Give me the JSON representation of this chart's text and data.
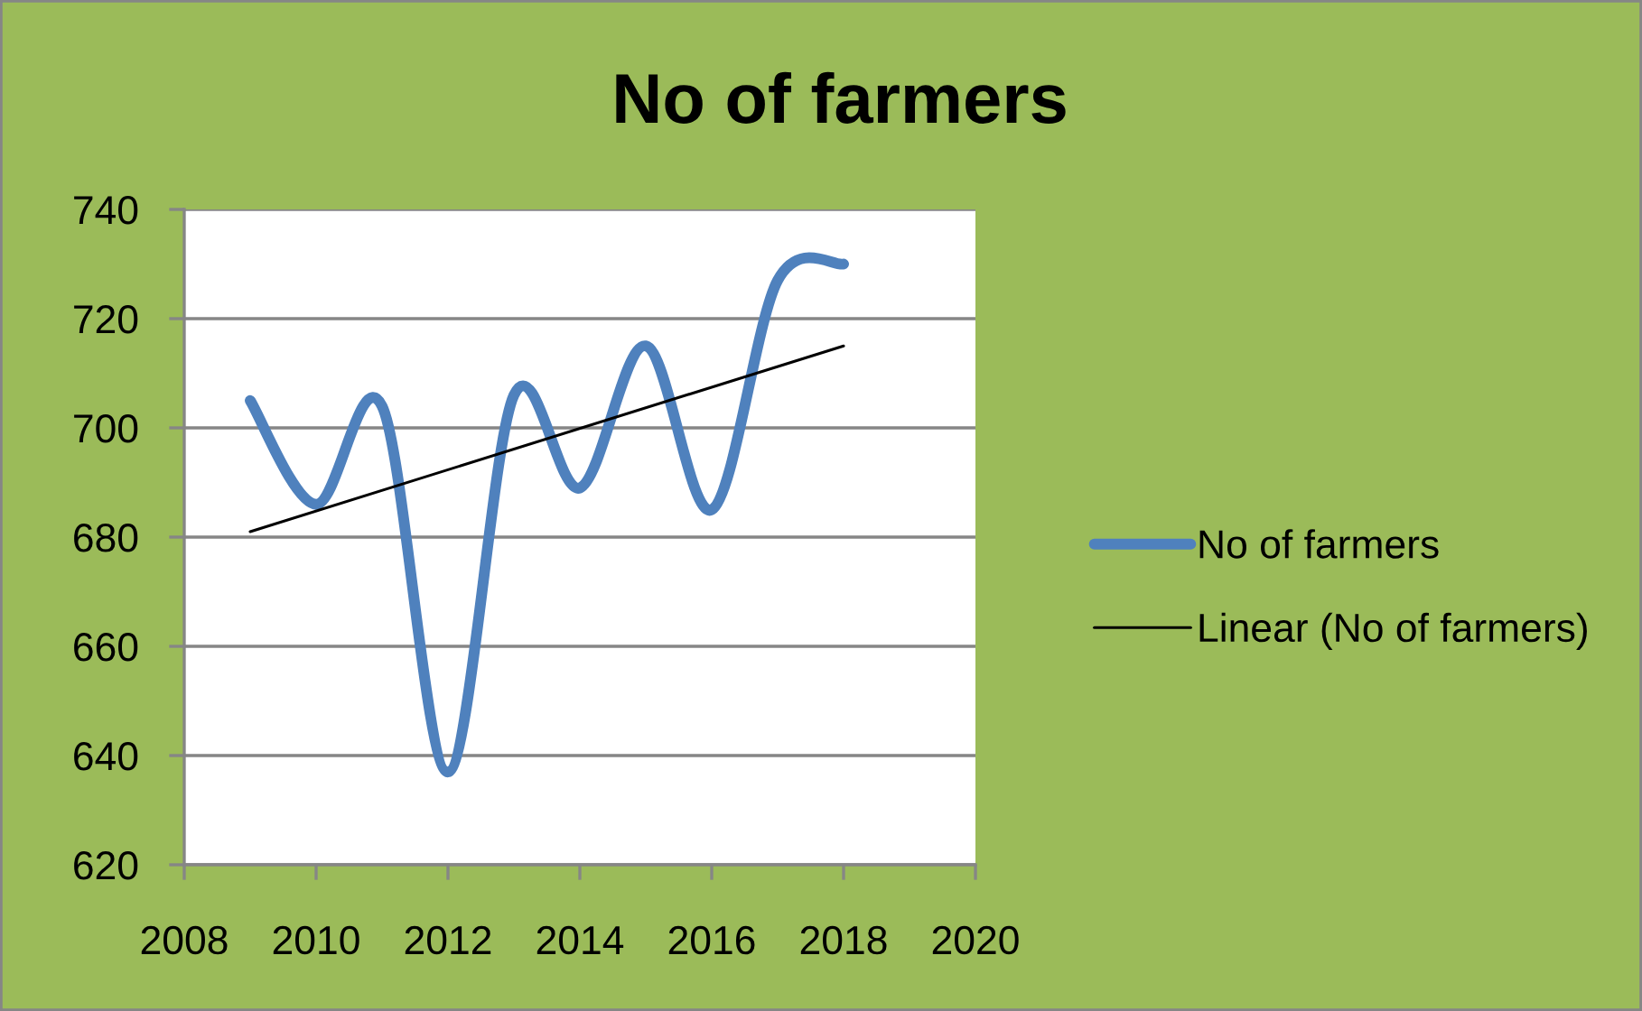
{
  "chart_data": {
    "type": "line",
    "title": "No of farmers",
    "x": [
      2009,
      2010,
      2011,
      2012,
      2013,
      2014,
      2015,
      2016,
      2017,
      2018
    ],
    "series": [
      {
        "name": "No of farmers",
        "color": "#4f81bd",
        "values": [
          705,
          686,
          704,
          637,
          706,
          689,
          715,
          685,
          727,
          730
        ]
      },
      {
        "name": "Linear (No of farmers)",
        "color": "#000000",
        "x": [
          2009,
          2018
        ],
        "values": [
          681,
          715
        ]
      }
    ],
    "xlim": [
      2008,
      2020
    ],
    "xticks": [
      2008,
      2010,
      2012,
      2014,
      2016,
      2018,
      2020
    ],
    "ylim": [
      620,
      740
    ],
    "yticks": [
      620,
      640,
      660,
      680,
      700,
      720,
      740
    ],
    "grid": "y",
    "legend": "right"
  }
}
